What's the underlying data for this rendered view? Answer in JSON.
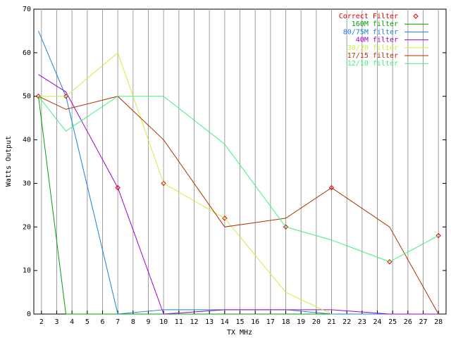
{
  "chart_data": {
    "type": "line",
    "xlabel": "TX MHz",
    "ylabel": "Watts Output",
    "x": [
      1.8,
      3.6,
      7,
      10,
      14,
      18,
      21,
      24.8,
      28
    ],
    "xlim": [
      1.5,
      28.5
    ],
    "xticks": [
      2,
      3,
      4,
      5,
      6,
      7,
      8,
      9,
      10,
      11,
      12,
      13,
      14,
      15,
      16,
      17,
      18,
      19,
      20,
      21,
      22,
      23,
      24,
      25,
      26,
      27,
      28
    ],
    "ylim": [
      0,
      70
    ],
    "yticks": [
      0,
      10,
      20,
      30,
      40,
      50,
      60,
      70
    ],
    "grid": "x",
    "legend": "top-right",
    "series": [
      {
        "name": "Correct Filter",
        "color": "#e00000",
        "mode": "points",
        "values": [
          50,
          50,
          29,
          30,
          22,
          20,
          29,
          12,
          18
        ]
      },
      {
        "name": "160M filter",
        "color": "#00a000",
        "mode": "lines",
        "values": [
          50,
          0,
          0,
          0,
          0,
          0,
          0,
          0,
          0
        ]
      },
      {
        "name": "80/75M filter",
        "color": "#1a80d8",
        "mode": "lines",
        "values": [
          65,
          50,
          0,
          1,
          1,
          1,
          0,
          0,
          0
        ]
      },
      {
        "name": "40M filter",
        "color": "#a000d0",
        "mode": "lines",
        "values": [
          55,
          51,
          29,
          0,
          1,
          1,
          1,
          0,
          0
        ]
      },
      {
        "name": "30/20 filter",
        "color": "#c8f040",
        "mode": "lines",
        "values": [
          50,
          50,
          60,
          30,
          22,
          5,
          0,
          null,
          null
        ]
      },
      {
        "name": "17/15 filter",
        "color": "#b03000",
        "mode": "lines",
        "values": [
          50,
          47,
          50,
          40,
          20,
          22,
          29,
          20,
          0
        ]
      },
      {
        "name": "12/10 filter",
        "color": "#40f080",
        "mode": "lines",
        "values": [
          50,
          42,
          50,
          50,
          39,
          20,
          17,
          12,
          18
        ]
      }
    ]
  }
}
